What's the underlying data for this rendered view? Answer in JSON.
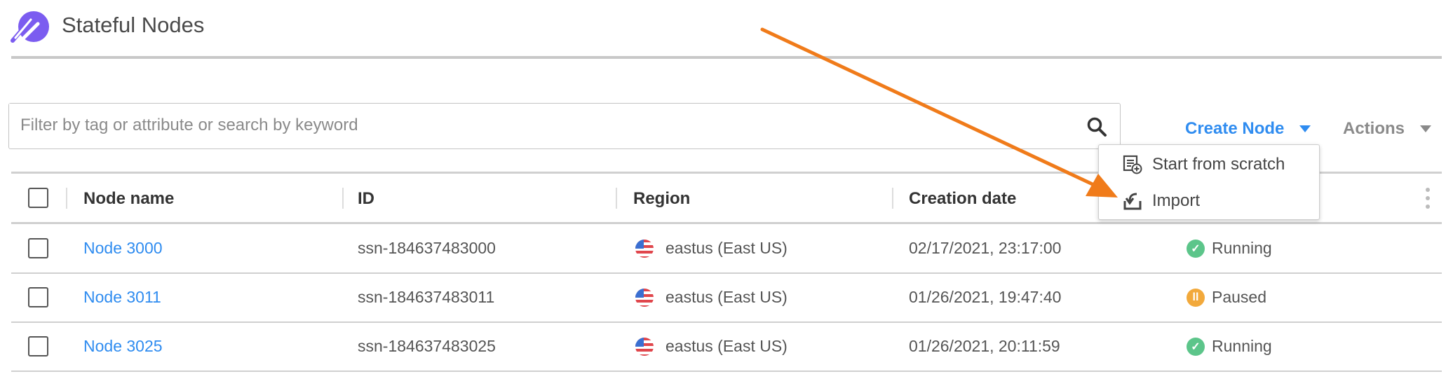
{
  "header": {
    "title": "Stateful  Nodes"
  },
  "search": {
    "placeholder": "Filter by tag or attribute or search by keyword",
    "value": ""
  },
  "toolbar": {
    "create_label": "Create Node",
    "actions_label": "Actions"
  },
  "dropdown": {
    "items": [
      {
        "label": "Start from scratch",
        "icon": "document-add-icon"
      },
      {
        "label": "Import",
        "icon": "import-icon"
      }
    ]
  },
  "table": {
    "columns": [
      "Node name",
      "ID",
      "Region",
      "Creation date"
    ],
    "rows": [
      {
        "name": "Node 3000",
        "id": "ssn-184637483000",
        "region": "eastus (East US)",
        "created": "02/17/2021, 23:17:00",
        "status": "Running"
      },
      {
        "name": "Node  3011",
        "id": "ssn-184637483011",
        "region": "eastus (East US)",
        "created": "01/26/2021, 19:47:40",
        "status": "Paused"
      },
      {
        "name": "Node  3025",
        "id": "ssn-184637483025",
        "region": "eastus (East US)",
        "created": "01/26/2021, 20:11:59",
        "status": "Running"
      }
    ]
  },
  "colors": {
    "accent": "#2f8cf0",
    "running": "#5cc58a",
    "paused": "#f2a93b",
    "annotation_arrow": "#f07b1a",
    "logo": "#7b5cf0"
  }
}
